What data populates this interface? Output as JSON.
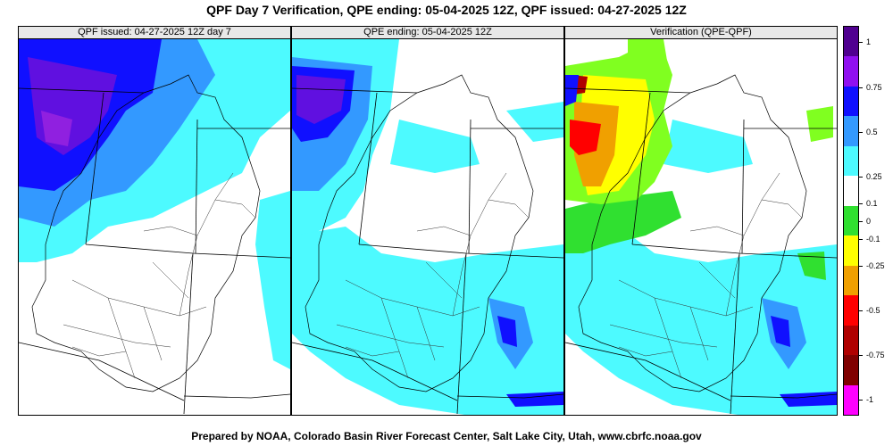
{
  "title": "QPF Day 7 Verification, QPE ending: 05-04-2025 12Z, QPF issued: 04-27-2025 12Z",
  "footer": "Prepared by NOAA, Colorado Basin River Forecast Center, Salt Lake City, Utah, www.cbrfc.noaa.gov",
  "panels": [
    {
      "label": "QPF issued: 04-27-2025 12Z day 7"
    },
    {
      "label": "QPE ending: 05-04-2025 12Z"
    },
    {
      "label": "Verification (QPE-QPF)"
    }
  ],
  "colors": {
    "light_cyan": "#4dfaff",
    "cyan2": "#33ccff",
    "dodger_blue": "#3399ff",
    "blue": "#1010ff",
    "indigo": "#6010e0",
    "purple": "#9020e0",
    "green": "#30e030",
    "lime": "#80ff20",
    "yellow": "#ffff00",
    "orange": "#f0a000",
    "red": "#ff0000",
    "dark_red": "#b00000",
    "maroon": "#800000",
    "magenta": "#ff00ff"
  },
  "colorbar": {
    "labels": [
      "1",
      "0.75",
      "0.5",
      "0.25",
      "0.1",
      "0",
      "-0.1",
      "-0.25",
      "-0.5",
      "-0.75",
      "-1"
    ],
    "segments": [
      "#500090",
      "#9010f0",
      "#1010ff",
      "#3399ff",
      "#4dfaff",
      "#ffffff",
      "#30e030",
      "#ffff00",
      "#f0a000",
      "#ff0000",
      "#b00000",
      "#800000",
      "#ff00ff"
    ]
  }
}
